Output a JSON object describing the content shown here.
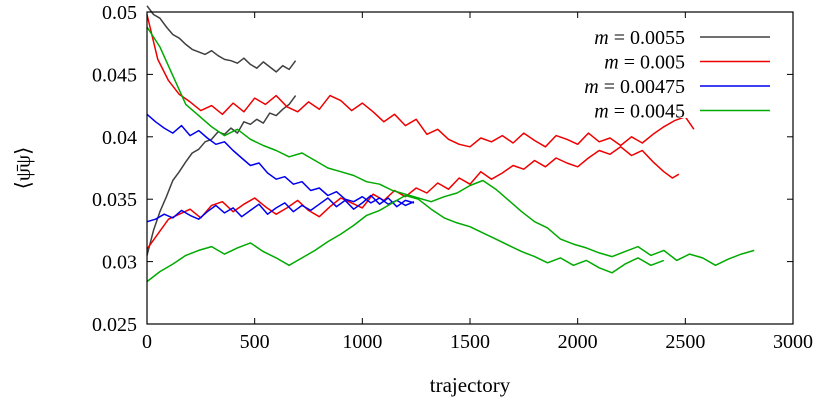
{
  "chart_data": {
    "type": "line",
    "title": "",
    "xlabel": "trajectory",
    "ylabel": "⟨ψ̄ψ⟩",
    "xlim": [
      0,
      3000
    ],
    "ylim": [
      0.025,
      0.05
    ],
    "xticks": [
      0,
      500,
      1000,
      1500,
      2000,
      2500,
      3000
    ],
    "xtick_labels": [
      "0",
      "500",
      "1000",
      "1500",
      "2000",
      "2500",
      "3000"
    ],
    "yticks": [
      0.025,
      0.03,
      0.035,
      0.04,
      0.045,
      0.05
    ],
    "ytick_labels": [
      "0.025",
      "0.03",
      "0.035",
      "0.04",
      "0.045",
      "0.05"
    ],
    "grid": false,
    "legend_position": "top-right",
    "series": [
      {
        "name": "m = 0.0055",
        "mass_symbol": "m",
        "mass_value": "0.0055",
        "color": "#404040",
        "lines": [
          {
            "x": [
              0,
              30,
              60,
              90,
              120,
              150,
              180,
              210,
              240,
              270,
              300,
              330,
              360,
              390,
              420,
              450,
              480,
              510,
              540,
              570,
              600,
              630,
              660,
              690
            ],
            "y": [
              0.0505,
              0.0498,
              0.0495,
              0.0488,
              0.0482,
              0.0479,
              0.0474,
              0.047,
              0.0468,
              0.0466,
              0.0469,
              0.0465,
              0.0462,
              0.0461,
              0.0459,
              0.0463,
              0.0458,
              0.0455,
              0.046,
              0.0456,
              0.0452,
              0.0457,
              0.0454,
              0.0461
            ]
          },
          {
            "x": [
              0,
              30,
              60,
              90,
              120,
              150,
              180,
              210,
              240,
              270,
              300,
              330,
              360,
              390,
              420,
              450,
              480,
              510,
              540,
              570,
              600,
              630,
              660,
              690
            ],
            "y": [
              0.0305,
              0.0325,
              0.034,
              0.0352,
              0.0365,
              0.0372,
              0.038,
              0.0387,
              0.039,
              0.0396,
              0.0398,
              0.0404,
              0.0402,
              0.0407,
              0.0403,
              0.0412,
              0.041,
              0.0414,
              0.0411,
              0.0419,
              0.0417,
              0.0422,
              0.0426,
              0.0433
            ]
          }
        ]
      },
      {
        "name": "m = 0.005",
        "mass_symbol": "m",
        "mass_value": "0.005",
        "color": "#ee0000",
        "lines": [
          {
            "x": [
              0,
              50,
              100,
              150,
              200,
              250,
              300,
              350,
              400,
              450,
              500,
              550,
              600,
              650,
              700,
              750,
              800,
              850,
              900,
              950,
              1000,
              1050,
              1100,
              1150,
              1200,
              1250,
              1300,
              1350,
              1400,
              1450,
              1500,
              1550,
              1600,
              1650,
              1700,
              1750,
              1800,
              1850,
              1900,
              1950,
              2000,
              2050,
              2100,
              2150,
              2200,
              2250,
              2300,
              2350,
              2400,
              2450,
              2500,
              2540
            ],
            "y": [
              0.0498,
              0.0462,
              0.0445,
              0.0434,
              0.0428,
              0.0421,
              0.0425,
              0.0418,
              0.0427,
              0.042,
              0.0431,
              0.0426,
              0.0433,
              0.0424,
              0.042,
              0.0428,
              0.0422,
              0.0433,
              0.0429,
              0.0421,
              0.0427,
              0.042,
              0.0412,
              0.0418,
              0.0409,
              0.0414,
              0.0402,
              0.0406,
              0.0398,
              0.0394,
              0.0392,
              0.0399,
              0.0396,
              0.0401,
              0.0395,
              0.0403,
              0.0397,
              0.0392,
              0.0401,
              0.0398,
              0.0394,
              0.0403,
              0.0396,
              0.0399,
              0.0393,
              0.04,
              0.0395,
              0.0402,
              0.0408,
              0.0413,
              0.0416,
              0.0406
            ]
          },
          {
            "x": [
              0,
              50,
              100,
              150,
              200,
              250,
              300,
              350,
              400,
              450,
              500,
              550,
              600,
              650,
              700,
              750,
              800,
              850,
              900,
              950,
              1000,
              1050,
              1100,
              1150,
              1200,
              1250,
              1300,
              1350,
              1400,
              1450,
              1500,
              1550,
              1600,
              1650,
              1700,
              1750,
              1800,
              1850,
              1900,
              1950,
              2000,
              2050,
              2100,
              2150,
              2200,
              2250,
              2300,
              2350,
              2400,
              2440,
              2470
            ],
            "y": [
              0.031,
              0.0322,
              0.0334,
              0.0338,
              0.0342,
              0.0335,
              0.0345,
              0.0348,
              0.034,
              0.0346,
              0.0351,
              0.0344,
              0.0338,
              0.0343,
              0.0349,
              0.0341,
              0.0336,
              0.0344,
              0.0351,
              0.0347,
              0.0343,
              0.0354,
              0.0349,
              0.0357,
              0.0352,
              0.0359,
              0.0355,
              0.0363,
              0.0358,
              0.0367,
              0.0362,
              0.0372,
              0.0366,
              0.0371,
              0.0377,
              0.0374,
              0.0381,
              0.0376,
              0.0383,
              0.0379,
              0.0376,
              0.0383,
              0.0389,
              0.0386,
              0.0392,
              0.0385,
              0.0389,
              0.038,
              0.0372,
              0.0367,
              0.037
            ]
          }
        ]
      },
      {
        "name": "m = 0.00475",
        "mass_symbol": "m",
        "mass_value": "0.00475",
        "color": "#0000ee",
        "lines": [
          {
            "x": [
              0,
              40,
              80,
              120,
              160,
              200,
              240,
              280,
              320,
              360,
              400,
              440,
              480,
              520,
              560,
              600,
              640,
              680,
              720,
              760,
              800,
              840,
              880,
              920,
              960,
              1000,
              1040,
              1080,
              1120,
              1160,
              1200,
              1240
            ],
            "y": [
              0.0418,
              0.0412,
              0.0407,
              0.0403,
              0.0409,
              0.0401,
              0.0405,
              0.0399,
              0.0394,
              0.0396,
              0.0389,
              0.0383,
              0.0377,
              0.0379,
              0.0371,
              0.0366,
              0.0368,
              0.0362,
              0.0364,
              0.0357,
              0.0359,
              0.0353,
              0.0356,
              0.035,
              0.0348,
              0.0352,
              0.0347,
              0.0351,
              0.0346,
              0.0349,
              0.0345,
              0.0348
            ]
          },
          {
            "x": [
              0,
              40,
              80,
              120,
              160,
              200,
              240,
              280,
              320,
              360,
              400,
              440,
              480,
              520,
              560,
              600,
              640,
              680,
              720,
              760,
              800,
              840,
              880,
              920,
              960,
              1000,
              1040,
              1080,
              1120,
              1160,
              1200,
              1240
            ],
            "y": [
              0.0332,
              0.0334,
              0.0338,
              0.0335,
              0.0341,
              0.0337,
              0.0334,
              0.034,
              0.0345,
              0.0339,
              0.0343,
              0.0336,
              0.0341,
              0.0346,
              0.0338,
              0.0343,
              0.0347,
              0.034,
              0.0345,
              0.0341,
              0.0346,
              0.0351,
              0.0344,
              0.0349,
              0.0342,
              0.0347,
              0.0353,
              0.0346,
              0.0351,
              0.0344,
              0.0349,
              0.0347
            ]
          }
        ]
      },
      {
        "name": "m = 0.0045",
        "mass_symbol": "m",
        "mass_value": "0.0045",
        "color": "#00aa00",
        "lines": [
          {
            "x": [
              0,
              60,
              120,
              180,
              240,
              300,
              360,
              420,
              480,
              540,
              600,
              660,
              720,
              780,
              840,
              900,
              960,
              1020,
              1080,
              1140,
              1200,
              1260,
              1320,
              1380,
              1440,
              1500,
              1560,
              1620,
              1680,
              1740,
              1800,
              1860,
              1920,
              1980,
              2040,
              2100,
              2160,
              2220,
              2280,
              2340,
              2400,
              2460,
              2520,
              2580,
              2640,
              2700,
              2760,
              2820
            ],
            "y": [
              0.0488,
              0.0472,
              0.0449,
              0.0426,
              0.0417,
              0.0408,
              0.0401,
              0.0406,
              0.0398,
              0.0393,
              0.0389,
              0.0384,
              0.0387,
              0.0381,
              0.0375,
              0.0372,
              0.0369,
              0.0364,
              0.0362,
              0.0357,
              0.0354,
              0.0351,
              0.0348,
              0.0352,
              0.0355,
              0.0361,
              0.0365,
              0.0358,
              0.0349,
              0.034,
              0.0332,
              0.0327,
              0.0318,
              0.0314,
              0.0311,
              0.0307,
              0.0304,
              0.0308,
              0.0312,
              0.0305,
              0.0309,
              0.0301,
              0.0306,
              0.0303,
              0.0297,
              0.0302,
              0.0306,
              0.0309
            ]
          },
          {
            "x": [
              0,
              60,
              120,
              180,
              240,
              300,
              360,
              420,
              480,
              540,
              600,
              660,
              720,
              780,
              840,
              900,
              960,
              1020,
              1080,
              1140,
              1200,
              1260,
              1320,
              1380,
              1440,
              1500,
              1560,
              1620,
              1680,
              1740,
              1800,
              1860,
              1920,
              1980,
              2040,
              2100,
              2160,
              2220,
              2280,
              2340,
              2400
            ],
            "y": [
              0.0284,
              0.0292,
              0.0298,
              0.0305,
              0.0309,
              0.0312,
              0.0306,
              0.0311,
              0.0315,
              0.0308,
              0.0303,
              0.0297,
              0.0303,
              0.0309,
              0.0316,
              0.0322,
              0.0329,
              0.0337,
              0.0341,
              0.0347,
              0.0353,
              0.035,
              0.0342,
              0.0335,
              0.0331,
              0.0328,
              0.0323,
              0.0318,
              0.0313,
              0.0308,
              0.0304,
              0.0299,
              0.0303,
              0.0297,
              0.0301,
              0.0295,
              0.0291,
              0.0298,
              0.0303,
              0.0297,
              0.0301
            ]
          }
        ]
      }
    ]
  }
}
